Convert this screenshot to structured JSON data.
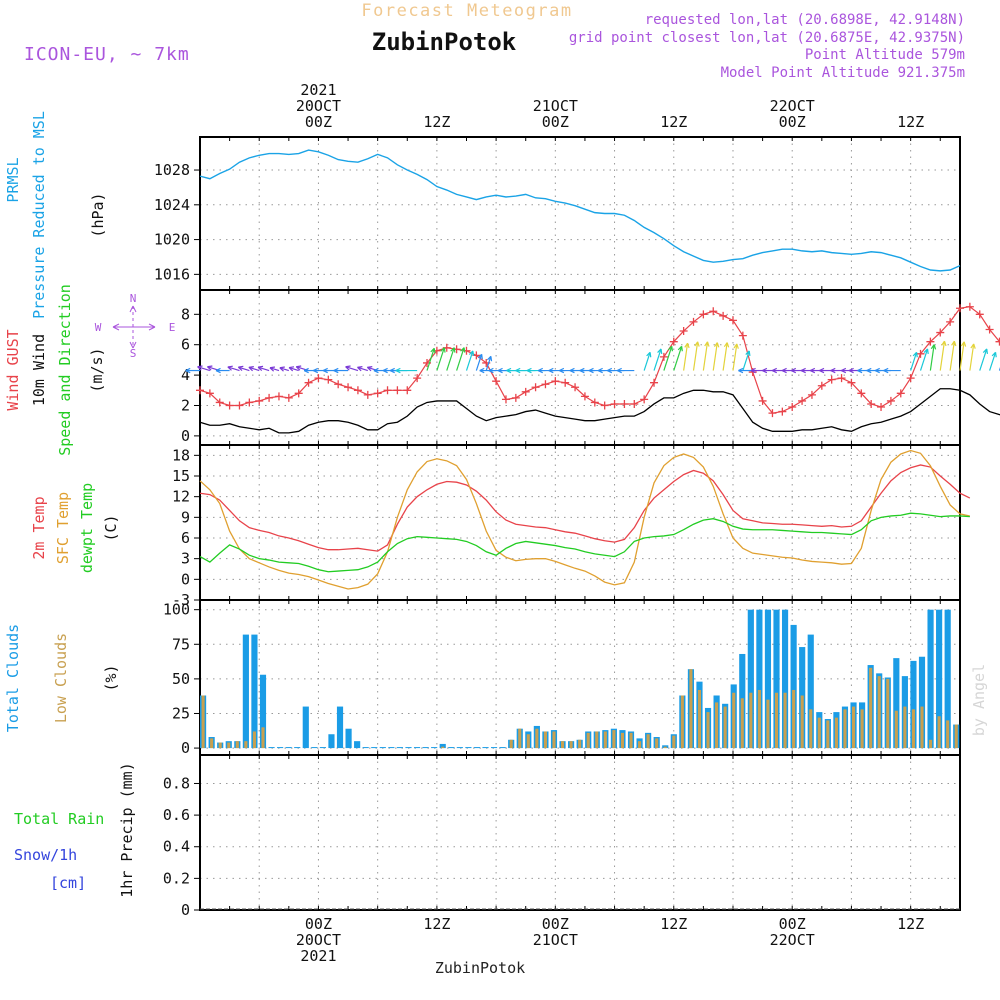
{
  "header": {
    "title": "Forecast Meteogram",
    "station": "ZubinPotok",
    "model": "ICON-EU, ~ 7km",
    "requested": "requested lon,lat (20.6898E, 42.9148N)",
    "closest": "grid point closest lon,lat (20.6875E, 42.9375N)",
    "point_alt": "Point Altitude 579m",
    "model_alt": "Model Point Altitude 921.375m",
    "footer_station": "ZubinPotok",
    "watermark": "by Angel"
  },
  "colors": {
    "pressure": "#1aa3e6",
    "gust": "#e8434a",
    "wind": "#000000",
    "temp2m": "#e8434a",
    "sfc": "#e0a030",
    "dewpt": "#22cc22",
    "total_clouds": "#1a9ce6",
    "low_clouds": "#c8a050",
    "rain": "#22cc22",
    "snow": "#3344dd",
    "title": "#f0c890",
    "info": "#aa55dd"
  },
  "time_axis": {
    "top_labels": [
      {
        "t": 12,
        "lines": [
          "2021",
          "20OCT",
          "00Z"
        ]
      },
      {
        "t": 24,
        "lines": [
          "12Z"
        ]
      },
      {
        "t": 36,
        "lines": [
          "21OCT",
          "00Z"
        ]
      },
      {
        "t": 48,
        "lines": [
          "12Z"
        ]
      },
      {
        "t": 60,
        "lines": [
          "22OCT",
          "00Z"
        ]
      },
      {
        "t": 72,
        "lines": [
          "12Z"
        ]
      }
    ],
    "bottom_labels": [
      {
        "t": 12,
        "lines": [
          "00Z",
          "20OCT",
          "2021"
        ]
      },
      {
        "t": 24,
        "lines": [
          "12Z"
        ]
      },
      {
        "t": 36,
        "lines": [
          "00Z",
          "21OCT"
        ]
      },
      {
        "t": 48,
        "lines": [
          "12Z"
        ]
      },
      {
        "t": 60,
        "lines": [
          "00Z",
          "22OCT"
        ]
      },
      {
        "t": 72,
        "lines": [
          "12Z"
        ]
      }
    ]
  },
  "panels": {
    "pressure": {
      "labels": [
        "PRMSL",
        "Pressure Reduced to MSL"
      ],
      "unit": "(hPa)",
      "ticks": [
        "1016",
        "1020",
        "1024",
        "1028"
      ]
    },
    "wind": {
      "labels": [
        "Wind GUST",
        "10m Wind",
        "Speed and Direction"
      ],
      "unit": "(m/s)",
      "ticks": [
        "0",
        "2",
        "4",
        "6",
        "8"
      ],
      "compass": {
        "n": "N",
        "s": "S",
        "w": "W",
        "e": "E"
      }
    },
    "temp": {
      "labels": [
        "2m Temp",
        "SFC Temp",
        "dewpt Temp"
      ],
      "unit": "(C)",
      "ticks": [
        "-3",
        "0",
        "3",
        "6",
        "9",
        "12",
        "15",
        "18"
      ]
    },
    "clouds": {
      "labels": [
        "Total Clouds",
        "Low Clouds"
      ],
      "unit": "(%)",
      "ticks": [
        "0",
        "25",
        "50",
        "75",
        "100"
      ]
    },
    "precip": {
      "labels": [
        "Total   Rain",
        "Snow/1h",
        "[cm]"
      ],
      "unit": "1hr Precip (mm)",
      "ticks": [
        "0",
        "0.2",
        "0.4",
        "0.6",
        "0.8"
      ]
    }
  },
  "chart_data": [
    {
      "type": "line",
      "name": "pressure",
      "ylabel": "(hPa)",
      "ylim": [
        1014.2,
        1031.8
      ],
      "x_range_hours": [
        0,
        77
      ],
      "series": [
        {
          "name": "PRMSL",
          "x": [
            0,
            1,
            2,
            3,
            4,
            5,
            6,
            7,
            8,
            9,
            10,
            11,
            12,
            13,
            14,
            15,
            16,
            17,
            18,
            19,
            20,
            21,
            22,
            23,
            24,
            25,
            26,
            27,
            28,
            29,
            30,
            31,
            32,
            33,
            34,
            35,
            36,
            37,
            38,
            39,
            40,
            41,
            42,
            43,
            44,
            45,
            46,
            47,
            48,
            49,
            50,
            51,
            52,
            53,
            54,
            55,
            56,
            57,
            58,
            59,
            60,
            61,
            62,
            63,
            64,
            65,
            66,
            67,
            68,
            69,
            70,
            71,
            72,
            73,
            74,
            75,
            76,
            77
          ],
          "y": [
            1027.3,
            1027.0,
            1027.6,
            1028.1,
            1028.9,
            1029.4,
            1029.7,
            1029.9,
            1029.9,
            1029.8,
            1029.9,
            1030.3,
            1030.1,
            1029.7,
            1029.2,
            1029.0,
            1028.9,
            1029.3,
            1029.8,
            1029.4,
            1028.6,
            1028.0,
            1027.5,
            1026.9,
            1026.1,
            1025.7,
            1025.2,
            1024.9,
            1024.6,
            1024.9,
            1025.1,
            1024.9,
            1025.0,
            1025.2,
            1024.8,
            1024.7,
            1024.4,
            1024.2,
            1023.9,
            1023.5,
            1023.1,
            1023.0,
            1023.0,
            1022.8,
            1022.2,
            1021.4,
            1020.8,
            1020.1,
            1019.3,
            1018.6,
            1018.1,
            1017.6,
            1017.4,
            1017.5,
            1017.7,
            1017.8,
            1018.2,
            1018.5,
            1018.7,
            1018.9,
            1018.9,
            1018.7,
            1018.6,
            1018.7,
            1018.5,
            1018.4,
            1018.3,
            1018.4,
            1018.6,
            1018.5,
            1018.2,
            1017.9,
            1017.4,
            1016.9,
            1016.5,
            1016.4,
            1016.5,
            1017.0
          ]
        }
      ]
    },
    {
      "type": "line",
      "name": "wind",
      "ylabel": "(m/s)",
      "ylim": [
        -0.6,
        9.6
      ],
      "series": [
        {
          "name": "Wind GUST",
          "markers": "+",
          "y": [
            3.0,
            2.8,
            2.2,
            2.0,
            2.0,
            2.2,
            2.3,
            2.5,
            2.6,
            2.5,
            2.8,
            3.5,
            3.8,
            3.7,
            3.4,
            3.2,
            3.0,
            2.7,
            2.8,
            3.0,
            3.0,
            3.0,
            3.8,
            4.8,
            5.6,
            5.8,
            5.7,
            5.6,
            5.3,
            4.8,
            3.6,
            2.4,
            2.5,
            2.9,
            3.2,
            3.4,
            3.6,
            3.5,
            3.2,
            2.6,
            2.2,
            2.0,
            2.1,
            2.1,
            2.1,
            2.4,
            3.5,
            5.2,
            6.2,
            6.9,
            7.5,
            8.0,
            8.2,
            7.9,
            7.6,
            6.6,
            4.2,
            2.3,
            1.5,
            1.6,
            1.9,
            2.3,
            2.7,
            3.3,
            3.7,
            3.8,
            3.5,
            2.8,
            2.1,
            1.9,
            2.3,
            2.8,
            3.8,
            5.4,
            6.2,
            6.8,
            7.5,
            8.4,
            8.5,
            8.0,
            7.0,
            6.2,
            5.5,
            5.0
          ]
        },
        {
          "name": "10m Wind",
          "y": [
            0.9,
            0.7,
            0.7,
            0.8,
            0.6,
            0.5,
            0.4,
            0.5,
            0.2,
            0.2,
            0.3,
            0.7,
            0.9,
            1.0,
            1.0,
            0.9,
            0.7,
            0.4,
            0.4,
            0.8,
            0.9,
            1.3,
            1.9,
            2.2,
            2.3,
            2.3,
            2.3,
            1.8,
            1.3,
            1.0,
            1.2,
            1.3,
            1.4,
            1.6,
            1.7,
            1.5,
            1.3,
            1.2,
            1.1,
            1.0,
            1.0,
            1.1,
            1.2,
            1.3,
            1.3,
            1.6,
            2.1,
            2.5,
            2.5,
            2.8,
            3.0,
            3.0,
            2.9,
            2.9,
            2.7,
            1.8,
            0.9,
            0.5,
            0.3,
            0.3,
            0.3,
            0.4,
            0.4,
            0.5,
            0.6,
            0.4,
            0.3,
            0.6,
            0.8,
            0.9,
            1.1,
            1.3,
            1.6,
            2.1,
            2.6,
            3.1,
            3.1,
            3.0,
            2.7,
            2.1,
            1.6,
            1.4,
            1.3
          ]
        }
      ]
    },
    {
      "type": "line",
      "name": "temperature",
      "ylabel": "(C)",
      "ylim": [
        -3,
        19.5
      ],
      "series": [
        {
          "name": "2m Temp",
          "y": [
            12.5,
            12.3,
            11.5,
            10.0,
            8.5,
            7.5,
            7.1,
            6.8,
            6.3,
            6.0,
            5.6,
            5.1,
            4.6,
            4.3,
            4.3,
            4.4,
            4.5,
            4.3,
            4.1,
            5.0,
            8.0,
            10.5,
            12.0,
            13.0,
            13.8,
            14.2,
            14.1,
            13.7,
            12.8,
            11.5,
            9.8,
            8.6,
            8.0,
            7.8,
            7.6,
            7.5,
            7.2,
            6.9,
            6.7,
            6.3,
            5.9,
            5.6,
            5.4,
            5.8,
            7.5,
            10.0,
            11.8,
            13.0,
            14.2,
            15.2,
            15.8,
            15.4,
            14.3,
            12.3,
            10.0,
            8.8,
            8.5,
            8.2,
            8.1,
            8.0,
            8.0,
            7.9,
            7.8,
            7.7,
            7.8,
            7.6,
            7.7,
            8.5,
            10.5,
            12.5,
            14.3,
            15.5,
            16.2,
            16.6,
            16.3,
            15.0,
            13.8,
            12.5,
            11.8
          ]
        },
        {
          "name": "SFC Temp",
          "y": [
            14.3,
            13.0,
            11.0,
            7.0,
            4.4,
            3.0,
            2.4,
            1.8,
            1.3,
            0.9,
            0.7,
            0.4,
            -0.1,
            -0.6,
            -1.0,
            -1.4,
            -1.2,
            -0.7,
            0.8,
            4.0,
            9.0,
            13.0,
            15.6,
            17.1,
            17.5,
            17.2,
            16.5,
            14.5,
            11.0,
            7.0,
            4.2,
            3.2,
            2.7,
            2.9,
            3.0,
            3.0,
            2.6,
            2.1,
            1.6,
            1.2,
            0.5,
            -0.4,
            -0.8,
            -0.5,
            2.5,
            9.0,
            14.0,
            16.5,
            17.7,
            18.2,
            17.7,
            16.3,
            13.5,
            9.5,
            6.0,
            4.5,
            3.8,
            3.6,
            3.4,
            3.2,
            3.1,
            2.8,
            2.6,
            2.5,
            2.4,
            2.2,
            2.3,
            4.5,
            10.0,
            14.5,
            17.0,
            18.2,
            18.7,
            18.3,
            16.5,
            13.5,
            10.8,
            9.5,
            9.2
          ]
        },
        {
          "name": "dewpt Temp",
          "y": [
            3.3,
            2.5,
            3.8,
            5.0,
            4.4,
            3.5,
            3.0,
            2.8,
            2.5,
            2.4,
            2.3,
            1.9,
            1.4,
            1.1,
            1.2,
            1.3,
            1.4,
            1.8,
            2.5,
            4.0,
            5.2,
            5.9,
            6.2,
            6.1,
            6.0,
            5.9,
            5.8,
            5.5,
            4.9,
            4.0,
            3.5,
            4.5,
            5.2,
            5.5,
            5.3,
            5.1,
            4.9,
            4.6,
            4.4,
            4.0,
            3.7,
            3.5,
            3.3,
            4.0,
            5.5,
            6.0,
            6.2,
            6.3,
            6.5,
            7.2,
            8.0,
            8.6,
            8.8,
            8.4,
            7.7,
            7.3,
            7.2,
            7.2,
            7.2,
            7.1,
            7.0,
            6.9,
            6.8,
            6.8,
            6.7,
            6.6,
            6.5,
            7.2,
            8.5,
            9.0,
            9.2,
            9.3,
            9.6,
            9.5,
            9.3,
            9.1,
            9.2,
            9.2,
            9.1
          ]
        }
      ]
    },
    {
      "type": "bar",
      "name": "clouds",
      "ylabel": "(%)",
      "ylim": [
        -5,
        107
      ],
      "series": [
        {
          "name": "Total Clouds",
          "values": [
            38,
            8,
            4,
            5,
            5,
            82,
            82,
            53,
            0,
            0,
            0,
            0,
            30,
            0,
            0,
            10,
            30,
            14,
            5,
            0,
            0,
            0,
            0,
            0,
            0,
            0,
            0,
            0,
            3,
            0,
            0,
            0,
            0,
            0,
            0,
            0,
            6,
            14,
            12,
            16,
            12,
            13,
            5,
            5,
            6,
            12,
            12,
            13,
            14,
            13,
            12,
            7,
            11,
            8,
            2,
            10,
            38,
            57,
            48,
            29,
            38,
            32,
            46,
            68,
            100,
            100,
            100,
            100,
            100,
            89,
            73,
            82,
            26,
            21,
            26,
            30,
            33,
            33,
            60,
            54,
            51,
            65,
            52,
            63,
            66,
            100,
            100,
            100,
            17
          ]
        },
        {
          "name": "Low Clouds",
          "values": [
            38,
            7,
            4,
            4,
            5,
            5,
            12,
            15,
            0,
            0,
            0,
            0,
            0,
            0,
            0,
            0,
            0,
            0,
            0,
            0,
            0,
            0,
            0,
            0,
            0,
            0,
            0,
            0,
            1,
            0,
            0,
            0,
            0,
            0,
            0,
            0,
            6,
            14,
            10,
            14,
            12,
            12,
            5,
            5,
            6,
            11,
            12,
            12,
            13,
            11,
            11,
            5,
            10,
            7,
            1,
            9,
            38,
            57,
            42,
            26,
            33,
            30,
            40,
            36,
            40,
            42,
            35,
            40,
            40,
            42,
            38,
            28,
            22,
            20,
            22,
            28,
            30,
            28,
            58,
            52,
            50,
            27,
            30,
            28,
            30,
            6,
            23,
            20,
            17
          ]
        }
      ]
    },
    {
      "type": "bar",
      "name": "precipitation",
      "ylabel": "1hr Precip (mm)",
      "ylim": [
        0,
        0.98
      ],
      "series": [
        {
          "name": "Total Rain",
          "values": [
            0
          ]
        },
        {
          "name": "Snow/1h",
          "values": [
            0
          ]
        }
      ]
    }
  ]
}
